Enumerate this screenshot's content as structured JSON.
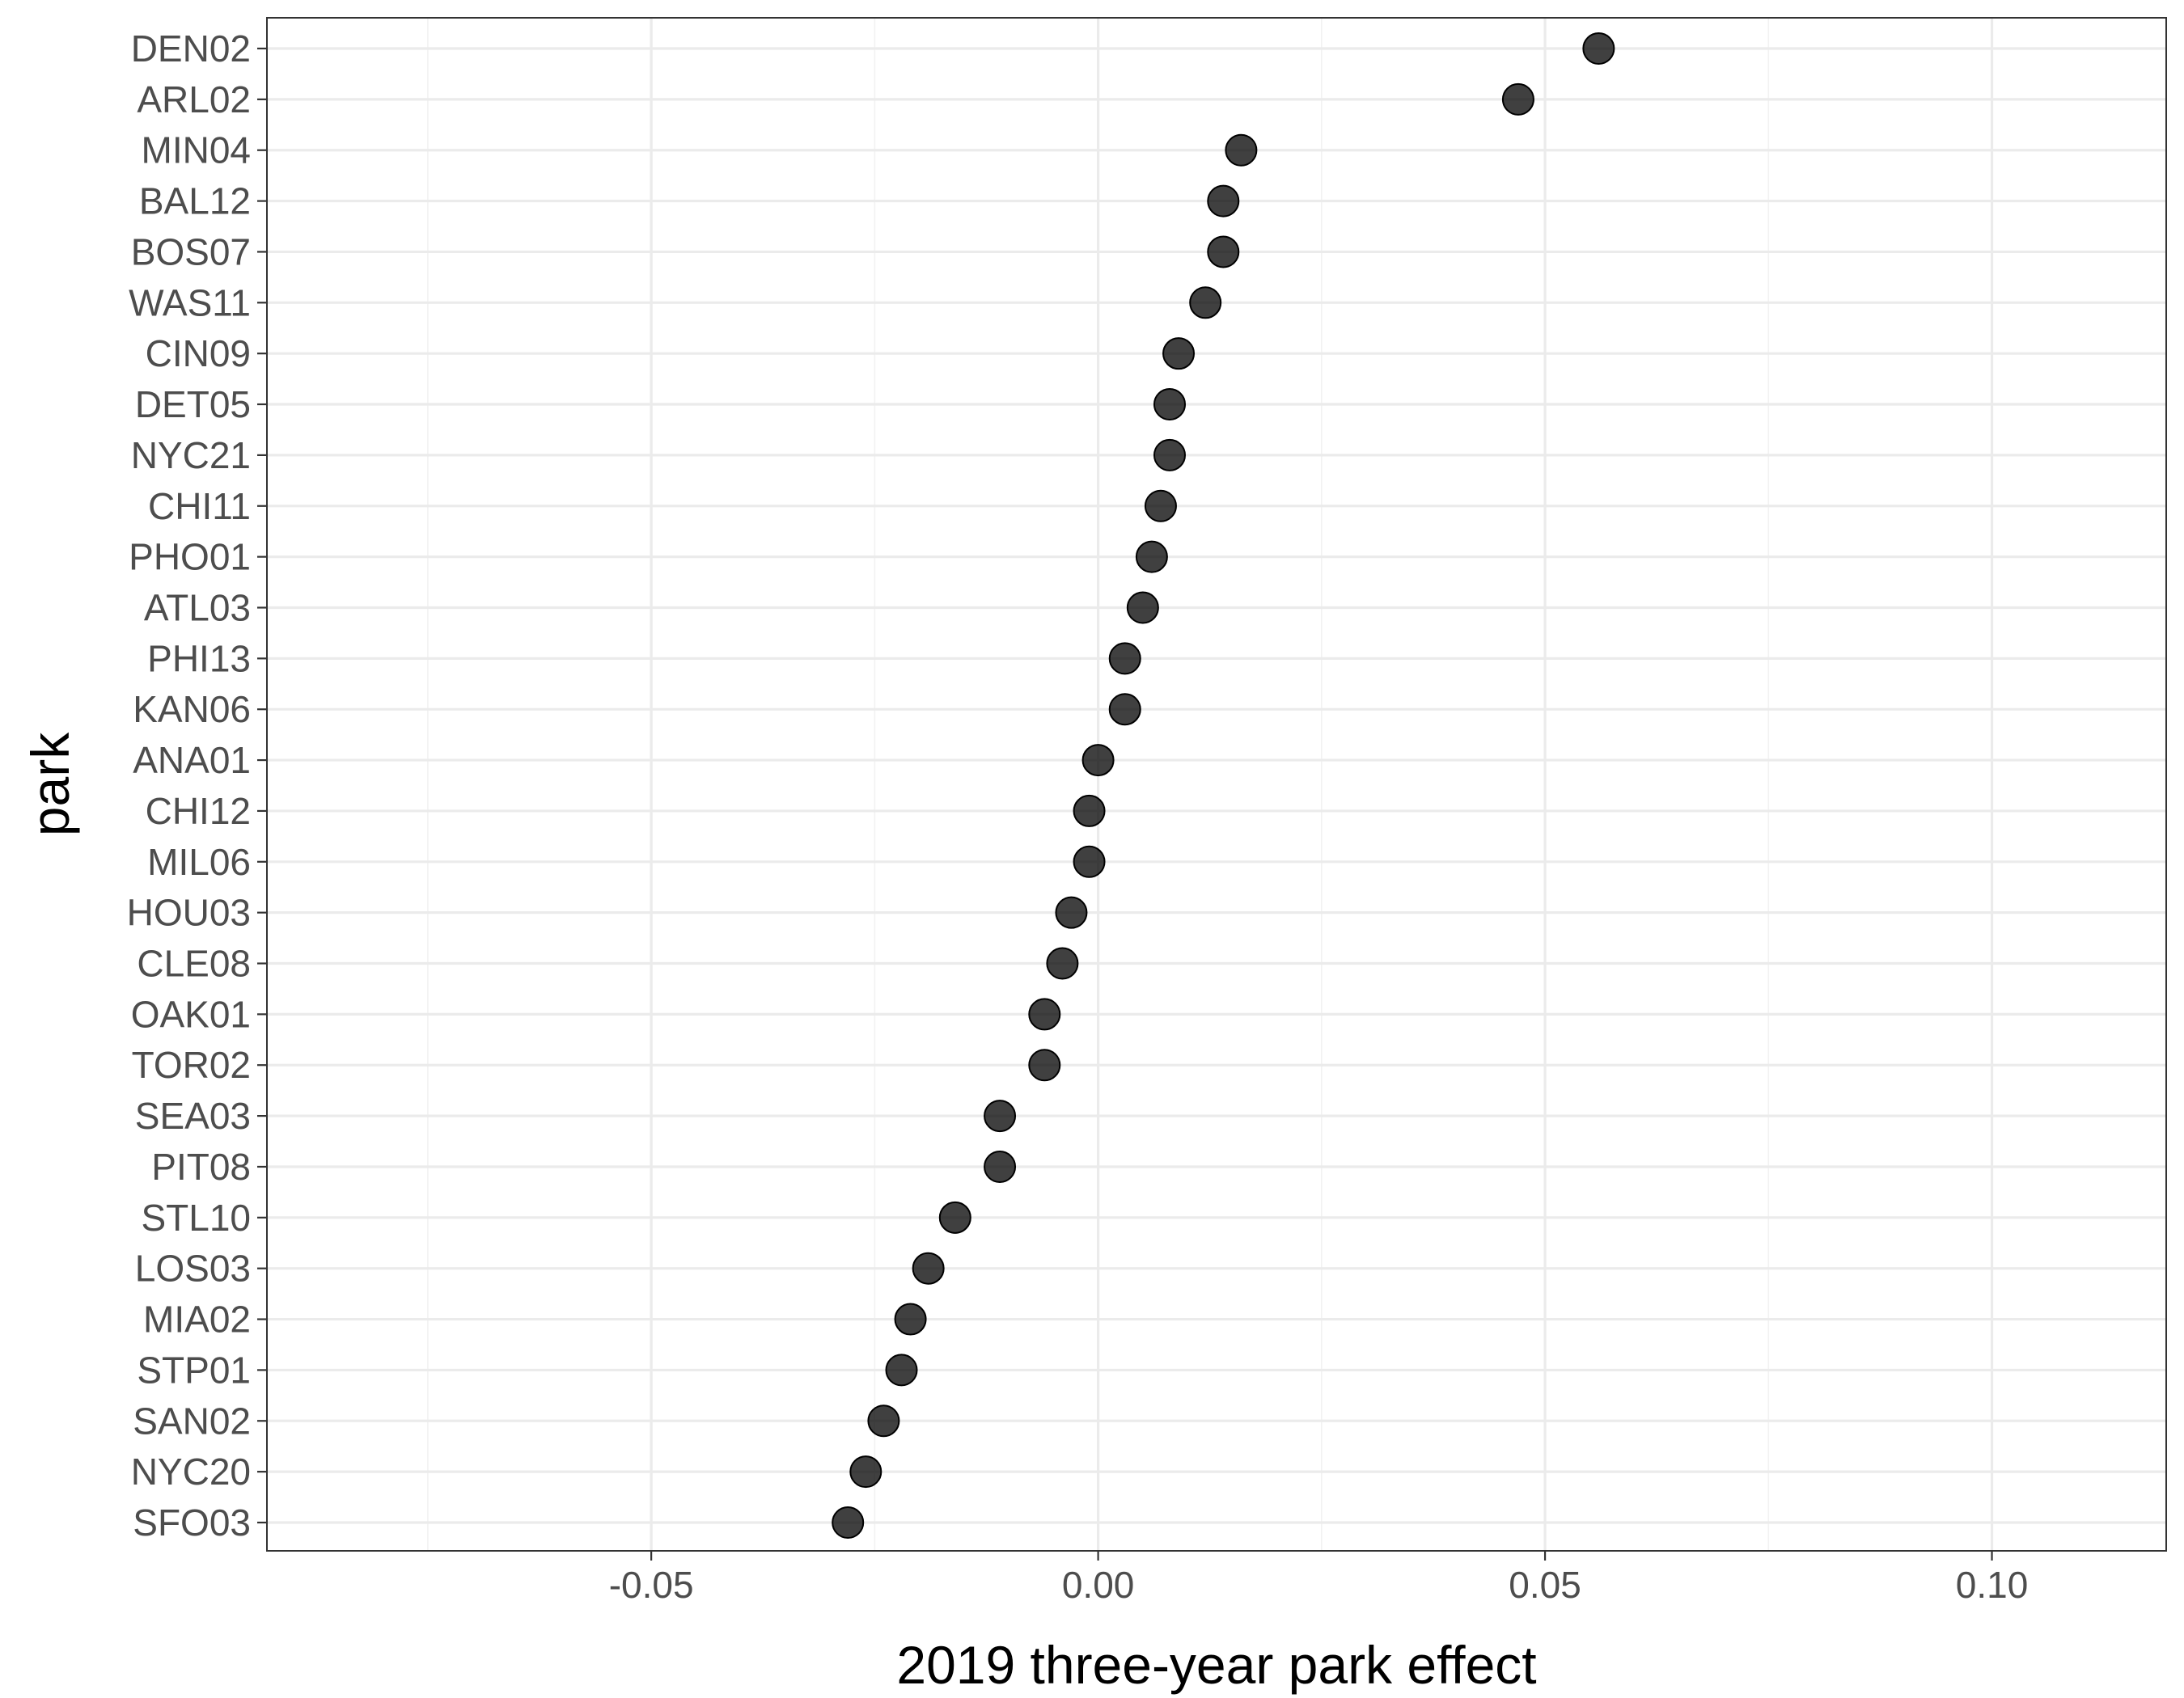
{
  "chart_data": {
    "type": "scatter",
    "xlabel": "2019 three-year park effect",
    "ylabel": "park",
    "xlim": [
      -0.093,
      0.1195
    ],
    "x_ticks": [
      -0.05,
      0.0,
      0.05,
      0.1
    ],
    "x_tick_labels": [
      "-0.05",
      "0.00",
      "0.05",
      "0.10"
    ],
    "grid": true,
    "legend": "none",
    "point_color": "#000000",
    "categories": [
      "DEN02",
      "ARL02",
      "MIN04",
      "BAL12",
      "BOS07",
      "WAS11",
      "CIN09",
      "DET05",
      "NYC21",
      "CHI11",
      "PHO01",
      "ATL03",
      "PHI13",
      "KAN06",
      "ANA01",
      "CHI12",
      "MIL06",
      "HOU03",
      "CLE08",
      "OAK01",
      "TOR02",
      "SEA03",
      "PIT08",
      "STL10",
      "LOS03",
      "MIA02",
      "STP01",
      "SAN02",
      "NYC20",
      "SFO03"
    ],
    "values": [
      0.056,
      0.047,
      0.016,
      0.014,
      0.014,
      0.012,
      0.009,
      0.008,
      0.008,
      0.007,
      0.006,
      0.005,
      0.003,
      0.003,
      0.0,
      -0.001,
      -0.001,
      -0.003,
      -0.004,
      -0.006,
      -0.006,
      -0.011,
      -0.011,
      -0.016,
      -0.019,
      -0.021,
      -0.022,
      -0.024,
      -0.026,
      -0.028
    ]
  }
}
